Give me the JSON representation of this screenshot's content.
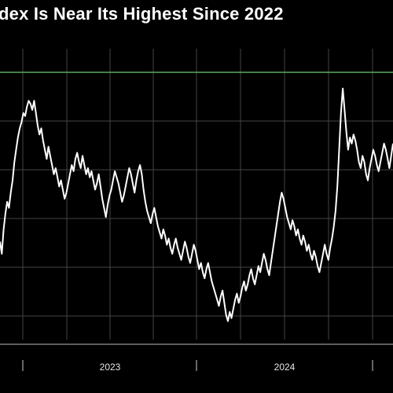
{
  "header": {
    "title": "dex Is Near Its Highest Since 2022"
  },
  "chart_data": {
    "type": "line",
    "title": "dex Is Near Its Highest Since 2022",
    "xlabel": "",
    "ylabel": "",
    "x_tick_labels": [
      "2023",
      "2024"
    ],
    "grid": true,
    "reference_line": {
      "color": "#6fbf6f"
    },
    "colors": {
      "background": "#000000",
      "line": "#ffffff",
      "grid": "#444444",
      "reference": "#5faa5f"
    },
    "series": [
      {
        "values": [
          62,
          58,
          66,
          71,
          75,
          73,
          78,
          82,
          88,
          92,
          96,
          99,
          101,
          104,
          103,
          106,
          108,
          107,
          105,
          108,
          104,
          100,
          97,
          99,
          95,
          92,
          89,
          93,
          90,
          87,
          84,
          86,
          83,
          80,
          82,
          79,
          76,
          78,
          81,
          84,
          87,
          85,
          89,
          91,
          88,
          86,
          90,
          87,
          84,
          86,
          83,
          85,
          82,
          79,
          81,
          84,
          80,
          76,
          73,
          70,
          74,
          77,
          79,
          82,
          85,
          83,
          81,
          78,
          75,
          77,
          80,
          83,
          86,
          84,
          81,
          78,
          82,
          85,
          87,
          84,
          79,
          75,
          72,
          70,
          68,
          71,
          73,
          70,
          67,
          65,
          63,
          66,
          64,
          61,
          63,
          60,
          58,
          61,
          63,
          60,
          58,
          56,
          59,
          62,
          60,
          57,
          55,
          58,
          61,
          59,
          56,
          53,
          55,
          52,
          50,
          53,
          55,
          52,
          49,
          47,
          45,
          43,
          41,
          44,
          46,
          42,
          38,
          36,
          39,
          37,
          40,
          43,
          45,
          42,
          44,
          47,
          49,
          46,
          48,
          51,
          53,
          50,
          48,
          51,
          54,
          52,
          55,
          58,
          56,
          53,
          51,
          55,
          59,
          63,
          67,
          71,
          75,
          78,
          76,
          73,
          70,
          68,
          66,
          69,
          67,
          64,
          66,
          63,
          61,
          64,
          62,
          59,
          61,
          58,
          56,
          59,
          57,
          54,
          52,
          55,
          58,
          61,
          58,
          56,
          60,
          63,
          67,
          72,
          80,
          92,
          104,
          112,
          105,
          98,
          92,
          96,
          94,
          97,
          95,
          92,
          88,
          86,
          90,
          88,
          84,
          82,
          86,
          89,
          92,
          90,
          87,
          85,
          88,
          91,
          94,
          92,
          89,
          86,
          90,
          94
        ]
      }
    ]
  }
}
